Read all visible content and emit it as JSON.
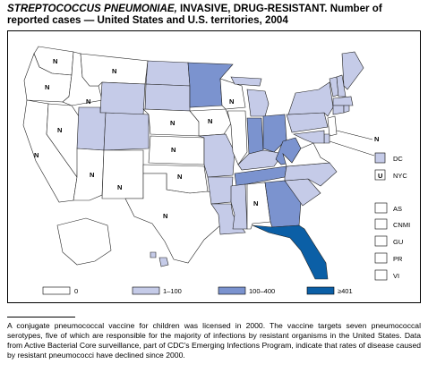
{
  "title": {
    "italic": "STREPTOCOCCUS PNEUMONIAE,",
    "rest": " INVASIVE, DRUG-RESISTANT. Number of reported cases — United States and U.S. territories, 2004"
  },
  "colors": {
    "none": "#ffffff",
    "low": "#c5cbe8",
    "mid": "#7b93cf",
    "high": "#0b5fa6"
  },
  "legend": {
    "bins": [
      {
        "label": "0",
        "color_key": "none"
      },
      {
        "label": "1–100",
        "color_key": "low"
      },
      {
        "label": "100–400",
        "color_key": "mid"
      },
      {
        "label": "≥401",
        "color_key": "high"
      }
    ]
  },
  "map_labels": {
    "n": "N",
    "dc": "DC",
    "nyc": "NYC",
    "nyc_box": "U",
    "territories": [
      "AS",
      "CNMI",
      "GU",
      "PR",
      "VI"
    ]
  },
  "states": {
    "WA": "N",
    "OR": "N",
    "ID": "N",
    "MT": "N",
    "NV": "N",
    "CA": "N",
    "AZ": "N",
    "NM": "N",
    "TX": "N",
    "OK": "N",
    "KS": "N",
    "NE": "N",
    "IA": "N",
    "WI": "N",
    "AL": "N",
    "NJ": "N",
    "WY": "low",
    "UT": "low",
    "CO": "low",
    "SD": "low",
    "ND": "low",
    "MO": "low",
    "AR": "low",
    "LA": "low",
    "MS": "low",
    "KY": "low",
    "MI": "low",
    "NY": "low",
    "PA": "low",
    "SC": "low",
    "NC": "low",
    "ME": "low",
    "VT": "low",
    "NH": "low",
    "MA": "low",
    "CT": "low",
    "RI": "low",
    "MD": "low",
    "DE": "low",
    "HI": "low",
    "MN": "mid",
    "IN": "mid",
    "OH": "mid",
    "WV": "mid",
    "TN": "mid",
    "GA": "mid",
    "FL": "high"
  },
  "footnote": "A conjugate pneumococcal vaccine for children was licensed in 2000. The vaccine targets seven pneumococcal serotypes, five of which are responsible for the majority of infections by resistant organisms in the United States. Data from Active Bacterial Core surveillance, part of CDC's Emerging Infections Program, indicate that rates of disease caused by resistant pneumococci have declined since 2000."
}
